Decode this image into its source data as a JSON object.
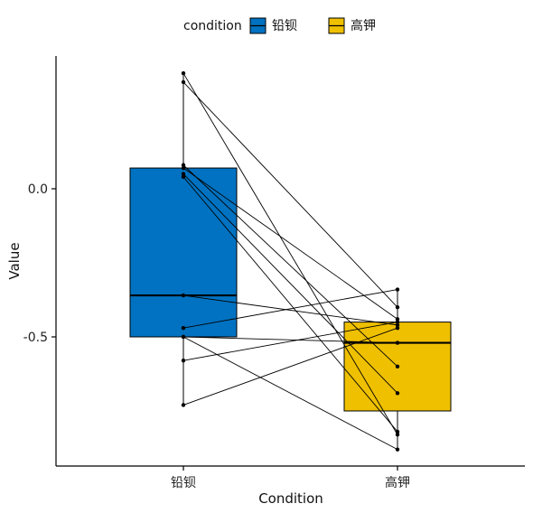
{
  "chart_data": {
    "type": "boxplot",
    "xlabel": "Condition",
    "ylabel": "Value",
    "categories": [
      "铅钡",
      "高钾"
    ],
    "ylim": [
      -0.94,
      0.45
    ],
    "yticks": [
      0.0,
      -0.5
    ],
    "ytick_labels": [
      "0.0",
      "-0.5"
    ],
    "grid": false,
    "legend": {
      "title": "condition",
      "placement": "top",
      "entries": [
        {
          "label": "铅钡",
          "color": "#0072C1"
        },
        {
          "label": "高钾",
          "color": "#EFC000"
        }
      ]
    },
    "boxes": [
      {
        "category": "铅钡",
        "q1": -0.5,
        "median": -0.36,
        "q3": 0.07,
        "whisker_low": -0.73,
        "whisker_high": 0.39,
        "color": "#0072C1"
      },
      {
        "category": "高钾",
        "q1": -0.75,
        "median": -0.52,
        "q3": -0.45,
        "whisker_low": -0.88,
        "whisker_high": -0.34,
        "color": "#EFC000"
      }
    ],
    "paired_points": [
      {
        "a": 0.39,
        "b": -0.83
      },
      {
        "a": 0.36,
        "b": -0.4
      },
      {
        "a": 0.08,
        "b": -0.6
      },
      {
        "a": 0.07,
        "b": -0.44
      },
      {
        "a": 0.05,
        "b": -0.69
      },
      {
        "a": 0.04,
        "b": -0.82
      },
      {
        "a": -0.36,
        "b": -0.46
      },
      {
        "a": -0.47,
        "b": -0.34
      },
      {
        "a": -0.5,
        "b": -0.52
      },
      {
        "a": -0.5,
        "b": -0.88
      },
      {
        "a": -0.58,
        "b": -0.45
      },
      {
        "a": -0.73,
        "b": -0.47
      }
    ]
  }
}
